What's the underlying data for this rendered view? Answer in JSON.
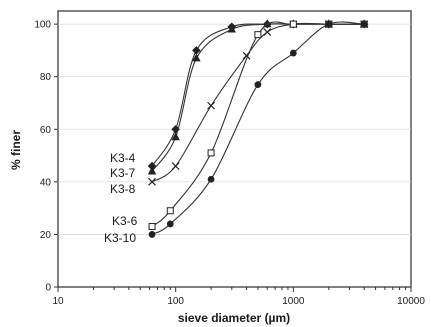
{
  "chart_data": {
    "type": "line",
    "title": "",
    "xlabel": "sieve diameter (µm)",
    "ylabel": "% finer",
    "xscale": "log",
    "xlim": [
      10,
      10000
    ],
    "ylim": [
      0,
      105
    ],
    "x_ticks": [
      10,
      100,
      1000,
      10000
    ],
    "x_tick_labels": [
      "10",
      "100",
      "1000",
      "10000"
    ],
    "y_ticks": [
      0,
      20,
      40,
      60,
      80,
      100
    ],
    "y_tick_labels": [
      "0",
      "20",
      "40",
      "60",
      "80",
      "100"
    ],
    "grid": "horizontal",
    "legend": "inline labels at left end of curves",
    "series": [
      {
        "name": "K3-4",
        "marker": "diamond",
        "x": [
          63,
          100,
          150,
          300,
          600,
          1000,
          2000,
          4000
        ],
        "y": [
          46,
          60,
          90,
          99,
          100,
          100,
          100,
          100
        ]
      },
      {
        "name": "K3-7",
        "marker": "triangle",
        "x": [
          63,
          100,
          150,
          300,
          600,
          1000,
          2000,
          4000
        ],
        "y": [
          44,
          57,
          87,
          98,
          100,
          100,
          100,
          100
        ]
      },
      {
        "name": "K3-8",
        "marker": "x",
        "x": [
          63,
          100,
          200,
          400,
          600,
          1000,
          2000,
          4000
        ],
        "y": [
          40,
          46,
          69,
          88,
          97,
          100,
          100,
          100
        ]
      },
      {
        "name": "K3-6",
        "marker": "square-open",
        "x": [
          63,
          90,
          200,
          500,
          1000,
          2000,
          4000
        ],
        "y": [
          23,
          29,
          51,
          96,
          100,
          100,
          100
        ]
      },
      {
        "name": "K3-10",
        "marker": "circle",
        "x": [
          63,
          90,
          200,
          500,
          1000,
          2000,
          4000
        ],
        "y": [
          20,
          24,
          41,
          77,
          89,
          100,
          100
        ]
      }
    ]
  }
}
